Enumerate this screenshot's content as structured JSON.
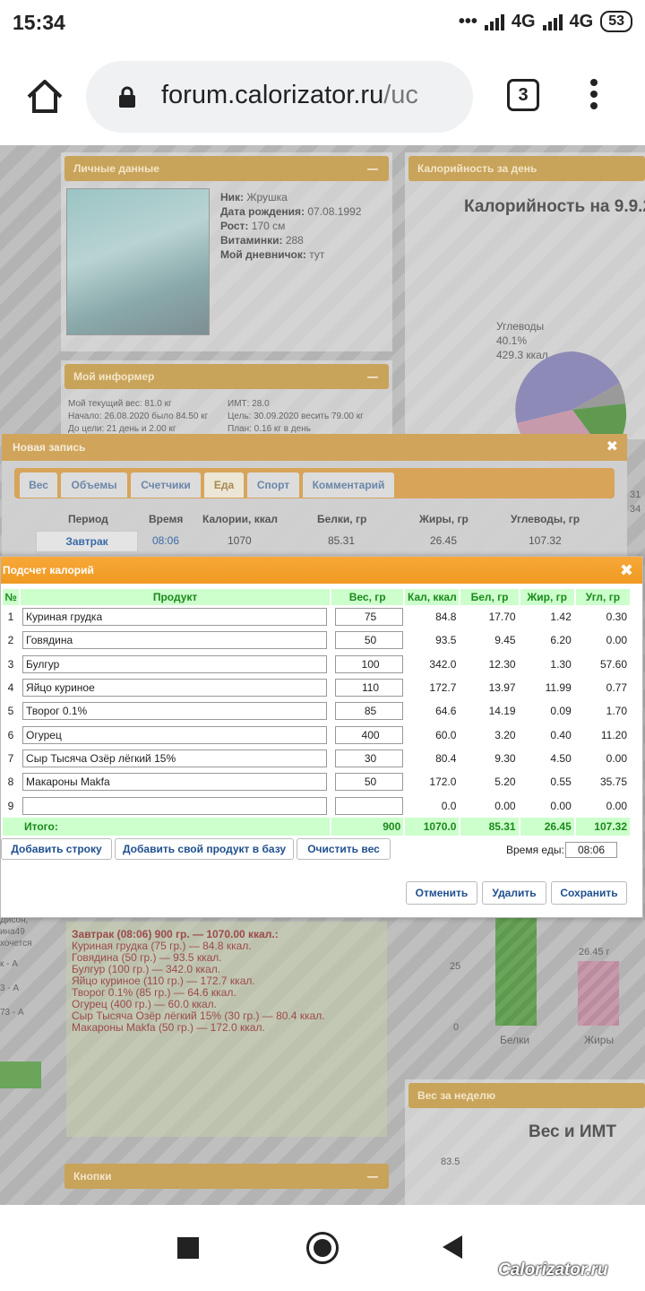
{
  "status_bar": {
    "time": "15:34",
    "network1": "4G",
    "network2": "4G",
    "battery": "53"
  },
  "browser": {
    "url_host": "forum.calorizator.ru",
    "url_rest": "/uc",
    "tab_count": "3"
  },
  "background": {
    "personal": {
      "title": "Личные данные",
      "nick_label": "Ник:",
      "nick": "Жрушка",
      "birth_label": "Дата рождения:",
      "birth": "07.08.1992",
      "height_label": "Рост:",
      "height": "170 см",
      "vitamins_label": "Витаминки:",
      "vitamins": "288",
      "diary_label": "Мой дневничок:",
      "diary": "тут"
    },
    "calories_panel": {
      "title": "Калорийность за день",
      "chart_title": "Калорийность на 9.9.2",
      "carbs_label": "Углеводы",
      "carbs_pct": "40.1%",
      "carbs_kcal": "429.3 ккал"
    },
    "informer": {
      "title": "Мой информер",
      "weight": "Мой текущий вес: 81.0 кг",
      "start": "Начало: 26.08.2020 было 84.50 кг",
      "remaining": "До цели: 21 день и 2.00 кг",
      "bmi": "ИМТ: 28.0",
      "goal": "Цель: 30.09.2020 весить 79.00 кг",
      "plan": "План: 0.16 кг в день"
    },
    "side_texts": [
      "Дисон,",
      "ина49",
      "хочется",
      "к - А",
      "3 - А",
      "73 - А"
    ],
    "diary_entries": [
      "Завтрак (08:06) 900 гр. — 1070.00 ккал.:",
      "Куриная грудка (75 гр.) — 84.8 ккал.",
      "Говядина (50 гр.) — 93.5 ккал.",
      "Булгур (100 гр.) — 342.0 ккал.",
      "Яйцо куриное (110 гр.) — 172.7 ккал.",
      "Творог 0.1% (85 гр.) — 64.6 ккал.",
      "Огурец (400 гр.) — 60.0 ккал.",
      "Сыр Тысяча Озёр лёгкий 15% (30 гр.) — 80.4 ккал.",
      "Макароны Makfa (50 гр.) — 172.0 ккал."
    ],
    "bars": {
      "fat_value": "26.45 г",
      "tick_25": "25",
      "tick_0": "0",
      "protein_label": "Белки",
      "fat_label": "Жиры"
    },
    "weight_panel": {
      "title": "Вес за неделю",
      "chart_title": "Вес и ИМТ",
      "tick": "83.5"
    },
    "buttons_panel": {
      "title": "Кнопки"
    },
    "right_side": [
      "31",
      "34"
    ]
  },
  "new_entry": {
    "title": "Новая запись",
    "tabs": [
      "Вес",
      "Объемы",
      "Счетчики",
      "Еда",
      "Спорт",
      "Комментарий"
    ],
    "headers": [
      "Период",
      "Время",
      "Калории, ккал",
      "Белки, гр",
      "Жиры, гр",
      "Углеводы, гр"
    ],
    "row": [
      "Завтрак",
      "08:06",
      "1070",
      "85.31",
      "26.45",
      "107.32"
    ]
  },
  "calc": {
    "title": "Подсчет калорий",
    "headers": {
      "num": "№",
      "product": "Продукт",
      "weight": "Вес, гр",
      "kcal": "Кал, ккал",
      "protein": "Бел, гр",
      "fat": "Жир, гр",
      "carbs": "Угл, гр"
    },
    "rows": [
      {
        "num": "1",
        "product": "Куриная грудка",
        "weight": "75",
        "kcal": "84.8",
        "protein": "17.70",
        "fat": "1.42",
        "carbs": "0.30"
      },
      {
        "num": "2",
        "product": "Говядина",
        "weight": "50",
        "kcal": "93.5",
        "protein": "9.45",
        "fat": "6.20",
        "carbs": "0.00"
      },
      {
        "num": "3",
        "product": "Булгур",
        "weight": "100",
        "kcal": "342.0",
        "protein": "12.30",
        "fat": "1.30",
        "carbs": "57.60"
      },
      {
        "num": "4",
        "product": "Яйцо куриное",
        "weight": "110",
        "kcal": "172.7",
        "protein": "13.97",
        "fat": "11.99",
        "carbs": "0.77"
      },
      {
        "num": "5",
        "product": "Творог 0.1%",
        "weight": "85",
        "kcal": "64.6",
        "protein": "14.19",
        "fat": "0.09",
        "carbs": "1.70"
      },
      {
        "num": "6",
        "product": "Огурец",
        "weight": "400",
        "kcal": "60.0",
        "protein": "3.20",
        "fat": "0.40",
        "carbs": "11.20"
      },
      {
        "num": "7",
        "product": "Сыр Тысяча Озёр лёгкий 15%",
        "weight": "30",
        "kcal": "80.4",
        "protein": "9.30",
        "fat": "4.50",
        "carbs": "0.00"
      },
      {
        "num": "8",
        "product": "Макароны Makfa",
        "weight": "50",
        "kcal": "172.0",
        "protein": "5.20",
        "fat": "0.55",
        "carbs": "35.75"
      },
      {
        "num": "9",
        "product": "",
        "weight": "",
        "kcal": "0.0",
        "protein": "0.00",
        "fat": "0.00",
        "carbs": "0.00"
      }
    ],
    "total": {
      "label": "Итого:",
      "weight": "900",
      "kcal": "1070.0",
      "protein": "85.31",
      "fat": "26.45",
      "carbs": "107.32"
    },
    "buttons": {
      "add_row": "Добавить строку",
      "add_product": "Добавить свой продукт в базу",
      "clear_weight": "Очистить вес",
      "cancel": "Отменить",
      "delete": "Удалить",
      "save": "Сохранить"
    },
    "meal_time_label": "Время еды:",
    "meal_time": "08:06"
  },
  "watermark": "Calorizator.ru"
}
